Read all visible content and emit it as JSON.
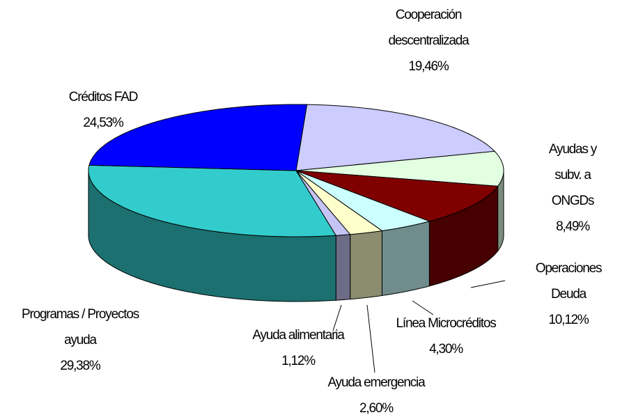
{
  "chart_data": {
    "type": "pie3d",
    "categories": [
      "Cooperación\ndescentralizada",
      "Ayudas y subv. a\nONGDs",
      "Operaciones Deuda",
      "Línea Microcréditos",
      "Ayuda emergencia",
      "Ayuda alimentaria",
      "Programas / Proyectos\nayuda",
      "Créditos FAD"
    ],
    "values": [
      19.46,
      8.49,
      10.12,
      4.3,
      2.6,
      1.12,
      29.38,
      24.53
    ],
    "value_labels": [
      "19,46%",
      "8,49%",
      "10,12%",
      "4,30%",
      "2,60%",
      "1,12%",
      "29,38%",
      "24,53%"
    ],
    "colors": [
      "#ccccff",
      "#e2ffe2",
      "#800000",
      "#ccffff",
      "#ffffcc",
      "#c4c4f4",
      "#33cccc",
      "#0000ff"
    ]
  }
}
